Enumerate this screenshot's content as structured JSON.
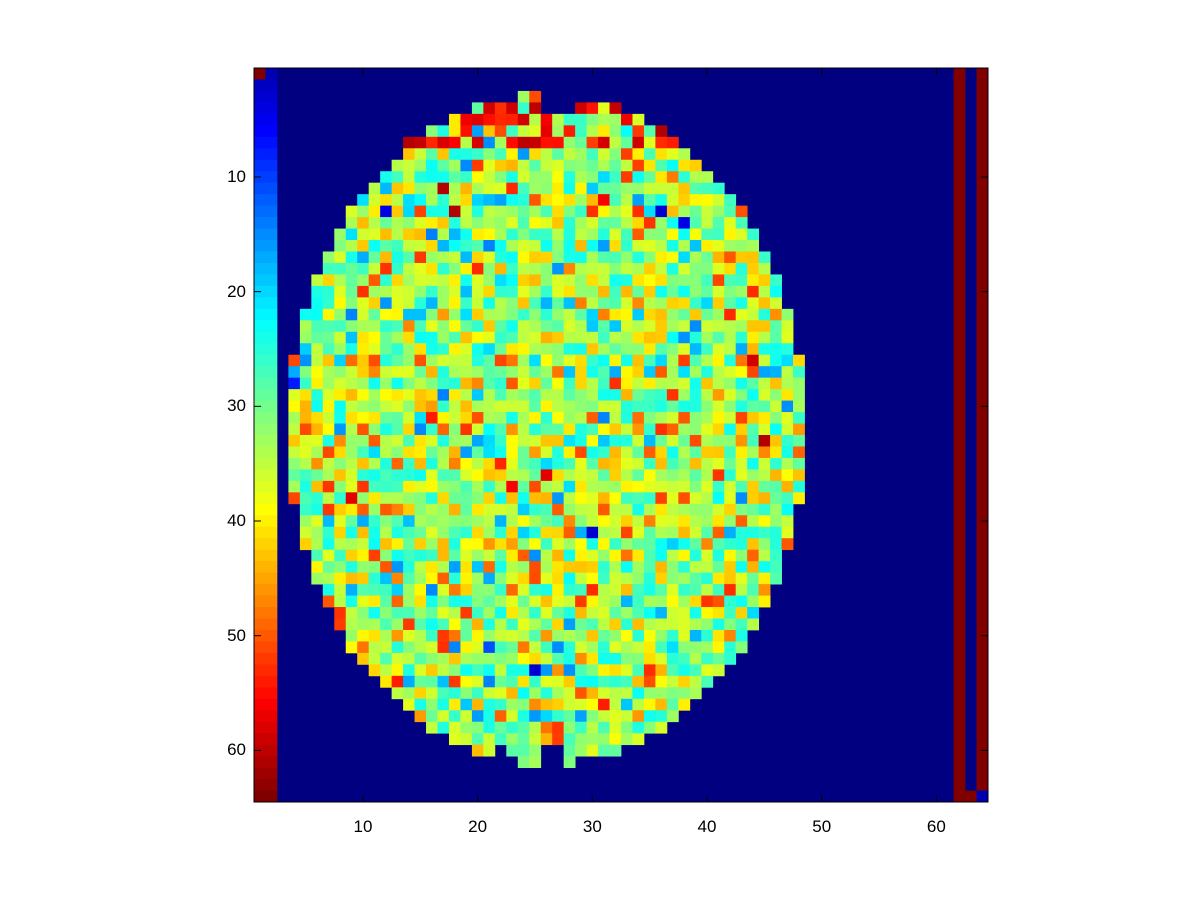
{
  "chart_data": {
    "type": "heatmap",
    "title": "",
    "xlabel": "",
    "ylabel": "",
    "x_range": [
      0.5,
      64.5
    ],
    "y_range": [
      0.5,
      64.5
    ],
    "y_direction": "top-to-bottom",
    "grid": false,
    "colormap": "jet",
    "colormap_strip": "column 1-2 shows the jet color scale from blue (top) to dark red (bottom)",
    "xticks": [
      "10",
      "20",
      "30",
      "40",
      "50",
      "60"
    ],
    "yticks": [
      "10",
      "20",
      "30",
      "40",
      "50",
      "60"
    ],
    "background_value": 0.0,
    "right_edge_columns": [
      62,
      64
    ],
    "right_edge_value": 1.0,
    "region": {
      "shape": "axial brain slice",
      "rows": [
        3,
        61
      ],
      "cols": [
        4,
        48
      ]
    },
    "hotspots": [
      {
        "row": 7,
        "col": 14,
        "value": 0.95
      },
      {
        "row": 6,
        "col": 36,
        "value": 0.95
      },
      {
        "row": 4,
        "col": 23,
        "value": 0.92
      },
      {
        "row": 11,
        "col": 17,
        "value": 0.95
      },
      {
        "row": 13,
        "col": 18,
        "value": 0.95
      },
      {
        "row": 12,
        "col": 31,
        "value": 0.88
      },
      {
        "row": 26,
        "col": 44,
        "value": 0.92
      },
      {
        "row": 33,
        "col": 45,
        "value": 0.95
      },
      {
        "row": 31,
        "col": 16,
        "value": 0.85
      },
      {
        "row": 38,
        "col": 9,
        "value": 0.9
      },
      {
        "row": 37,
        "col": 23,
        "value": 0.88
      },
      {
        "row": 36,
        "col": 26,
        "value": 0.9
      },
      {
        "row": 54,
        "col": 13,
        "value": 0.85
      },
      {
        "row": 56,
        "col": 31,
        "value": 0.85
      }
    ],
    "coldspots": [
      {
        "row": 13,
        "col": 12,
        "value": 0.1
      },
      {
        "row": 13,
        "col": 36,
        "value": 0.08
      },
      {
        "row": 14,
        "col": 38,
        "value": 0.1
      },
      {
        "row": 28,
        "col": 4,
        "value": 0.15
      },
      {
        "row": 41,
        "col": 30,
        "value": 0.08
      },
      {
        "row": 53,
        "col": 25,
        "value": 0.08
      },
      {
        "row": 51,
        "col": 21,
        "value": 0.2
      }
    ]
  }
}
